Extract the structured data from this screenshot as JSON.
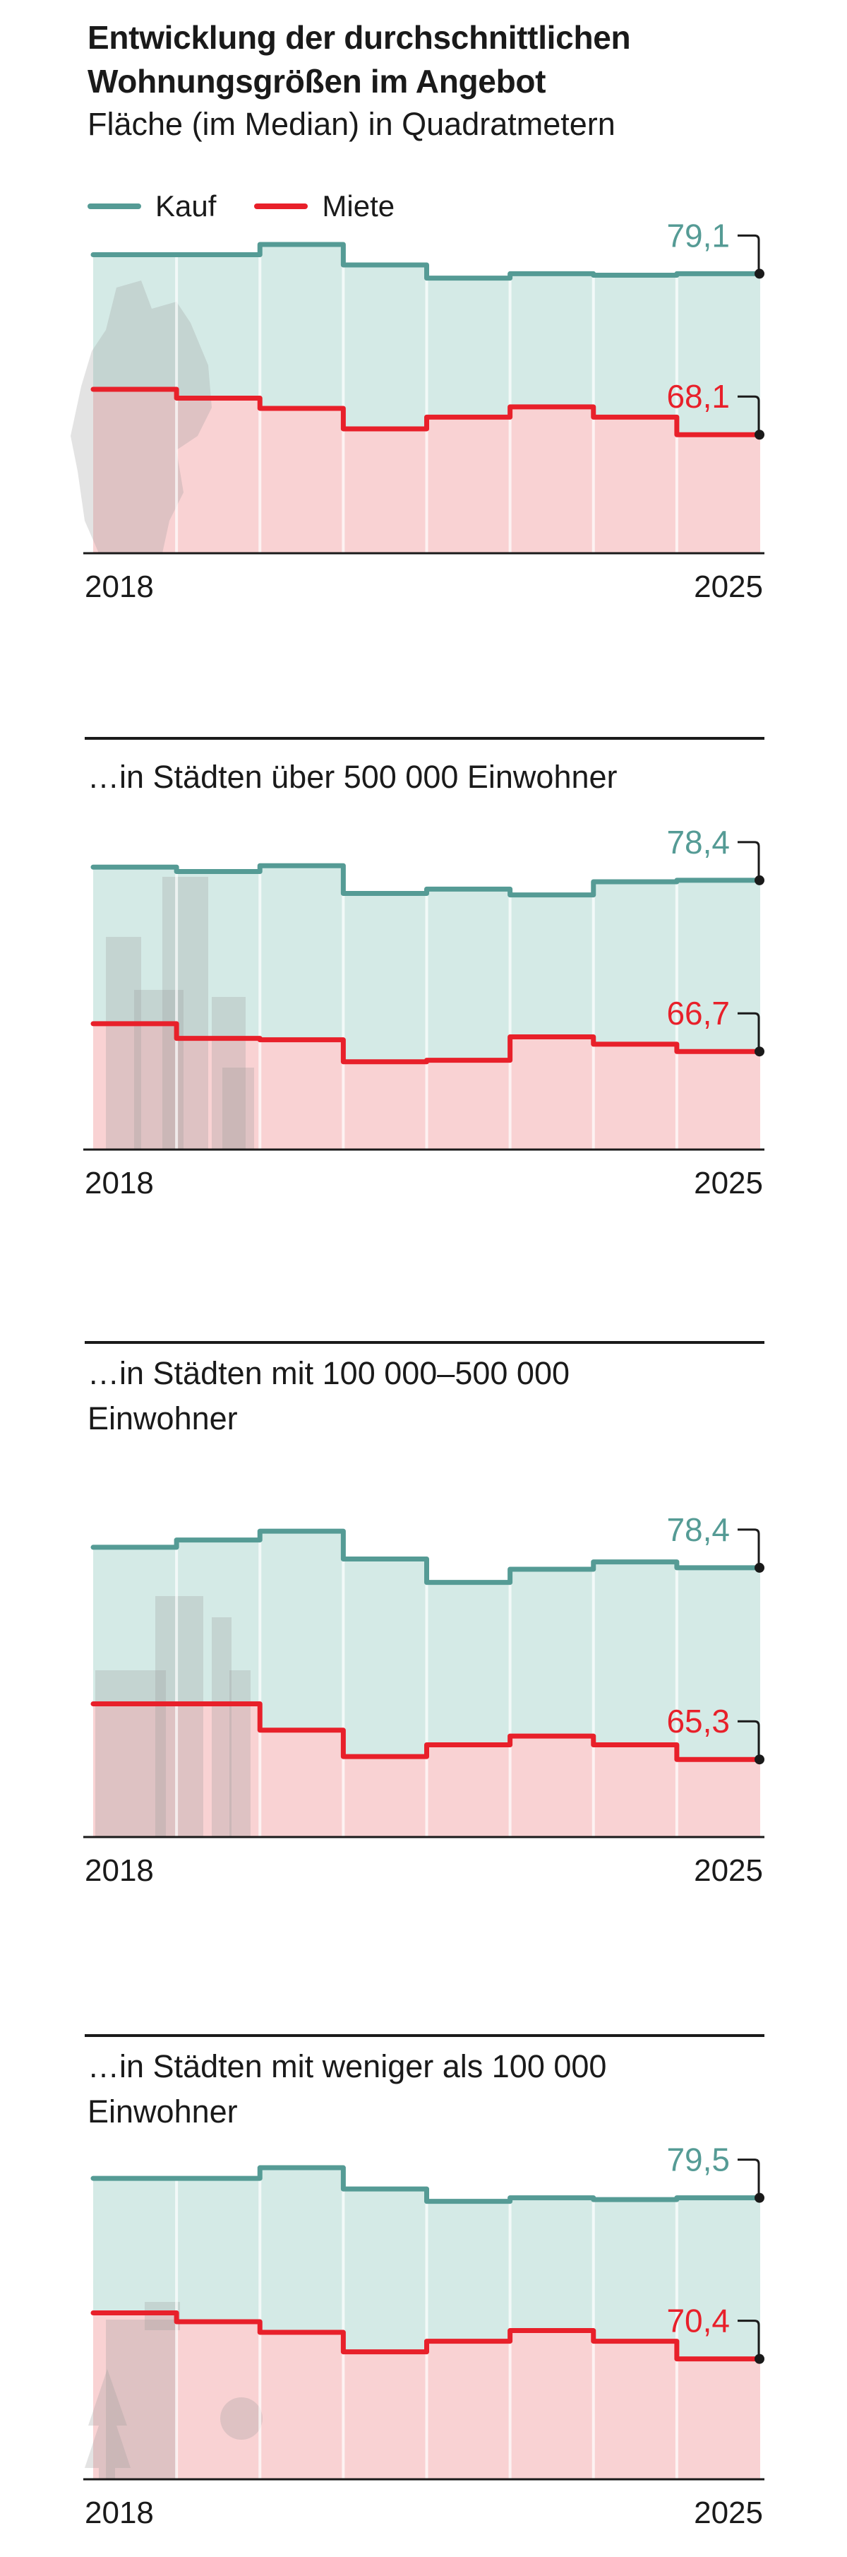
{
  "header": {
    "title_line1": "Entwicklung der durchschnittlichen",
    "title_line2": "Wohnungsgrößen im Angebot",
    "subtitle": "Fläche (im Median) in Quadratmetern"
  },
  "legend": [
    {
      "label": "Kauf",
      "color": "#559b95"
    },
    {
      "label": "Miete",
      "color": "#e8202a"
    }
  ],
  "colors": {
    "kauf_line": "#559b95",
    "kauf_fill": "#d4eae6",
    "miete_line": "#e8202a",
    "miete_fill": "#f9d2d3",
    "silhouette": "#9a9a9a"
  },
  "chart_data": [
    {
      "type": "line",
      "step": true,
      "heading": "",
      "background_icon": "germany-map",
      "x": [
        "2018",
        "2019",
        "2020",
        "2021",
        "2022",
        "2023",
        "2024",
        "2025"
      ],
      "x_tick_labels": [
        "2018",
        "2025"
      ],
      "ylim": [
        60,
        82.5
      ],
      "series": [
        {
          "name": "Kauf",
          "values": [
            80.4,
            80.4,
            81.1,
            79.7,
            78.8,
            79.1,
            79.0,
            79.1
          ],
          "end_label": "79,1"
        },
        {
          "name": "Miete",
          "values": [
            71.2,
            70.6,
            69.9,
            68.5,
            69.3,
            70.0,
            69.3,
            68.1
          ],
          "end_label": "68,1"
        }
      ]
    },
    {
      "type": "line",
      "step": true,
      "heading": "…in Städten über 500 000 Einwohner",
      "background_icon": "big-city-skyline",
      "x": [
        "2018",
        "2019",
        "2020",
        "2021",
        "2022",
        "2023",
        "2024",
        "2025"
      ],
      "x_tick_labels": [
        "2018",
        "2025"
      ],
      "ylim": [
        60,
        82.5
      ],
      "series": [
        {
          "name": "Kauf",
          "values": [
            79.3,
            79.0,
            79.4,
            77.5,
            77.8,
            77.4,
            78.3,
            78.4
          ],
          "end_label": "78,4"
        },
        {
          "name": "Miete",
          "values": [
            68.6,
            67.6,
            67.5,
            66.0,
            66.1,
            67.7,
            67.2,
            66.7
          ],
          "end_label": "66,7"
        }
      ]
    },
    {
      "type": "line",
      "step": true,
      "heading": "…in Städten mit 100 000–500 000",
      "heading_line2": "Einwohner",
      "background_icon": "mid-city-buildings",
      "x": [
        "2018",
        "2019",
        "2020",
        "2021",
        "2022",
        "2023",
        "2024",
        "2025"
      ],
      "x_tick_labels": [
        "2018",
        "2025"
      ],
      "ylim": [
        60,
        82.5
      ],
      "series": [
        {
          "name": "Kauf",
          "values": [
            79.8,
            80.3,
            80.9,
            79.0,
            77.4,
            78.3,
            78.8,
            78.4
          ],
          "end_label": "78,4"
        },
        {
          "name": "Miete",
          "values": [
            69.1,
            69.1,
            67.3,
            65.5,
            66.3,
            66.9,
            66.3,
            65.3
          ],
          "end_label": "65,3"
        }
      ]
    },
    {
      "type": "line",
      "step": true,
      "heading": "…in Städten mit weniger als 100 000",
      "heading_line2": "Einwohner",
      "background_icon": "house-and-trees",
      "x": [
        "2018",
        "2019",
        "2020",
        "2021",
        "2022",
        "2023",
        "2024",
        "2025"
      ],
      "x_tick_labels": [
        "2018",
        "2025"
      ],
      "ylim": [
        63.6,
        82.2
      ],
      "series": [
        {
          "name": "Kauf",
          "values": [
            80.6,
            80.6,
            81.2,
            80.0,
            79.3,
            79.5,
            79.4,
            79.5
          ],
          "end_label": "79,5"
        },
        {
          "name": "Miete",
          "values": [
            73.0,
            72.5,
            71.9,
            70.8,
            71.4,
            72.0,
            71.4,
            70.4
          ],
          "end_label": "70,4"
        }
      ]
    }
  ]
}
